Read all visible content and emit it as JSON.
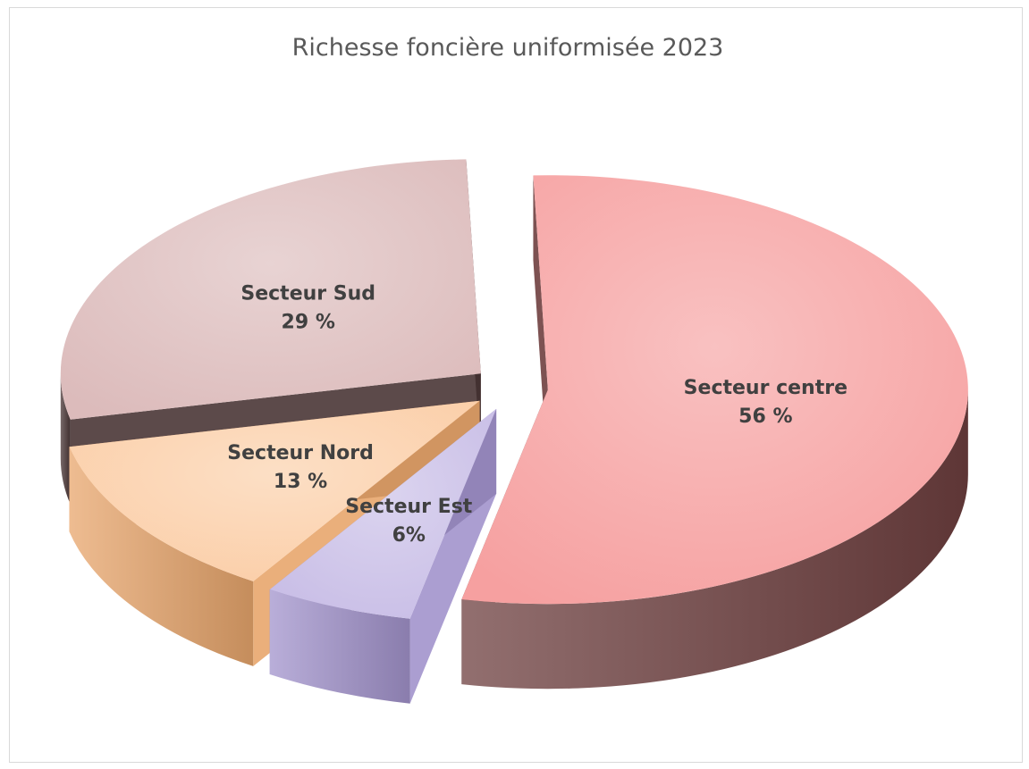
{
  "chart_data": {
    "type": "pie",
    "style": "3d-exploded",
    "title": "Richesse foncière uniformisée 2023",
    "slices": [
      {
        "label": "Secteur centre",
        "value": 56,
        "value_label": "56 %",
        "top_color": "#f6a0a0",
        "side_color": "#6e3f3f"
      },
      {
        "label": "Secteur Est",
        "value": 6,
        "value_label": "6%",
        "top_color": "#c8bde6",
        "side_color": "#a293cc"
      },
      {
        "label": "Secteur Nord",
        "value": 13,
        "value_label": "13 %",
        "top_color": "#fbcda6",
        "side_color": "#e8a66c"
      },
      {
        "label": "Secteur Sud",
        "value": 29,
        "value_label": "29 %",
        "top_color": "#dcbbbb",
        "side_color": "#4a3636"
      }
    ]
  }
}
